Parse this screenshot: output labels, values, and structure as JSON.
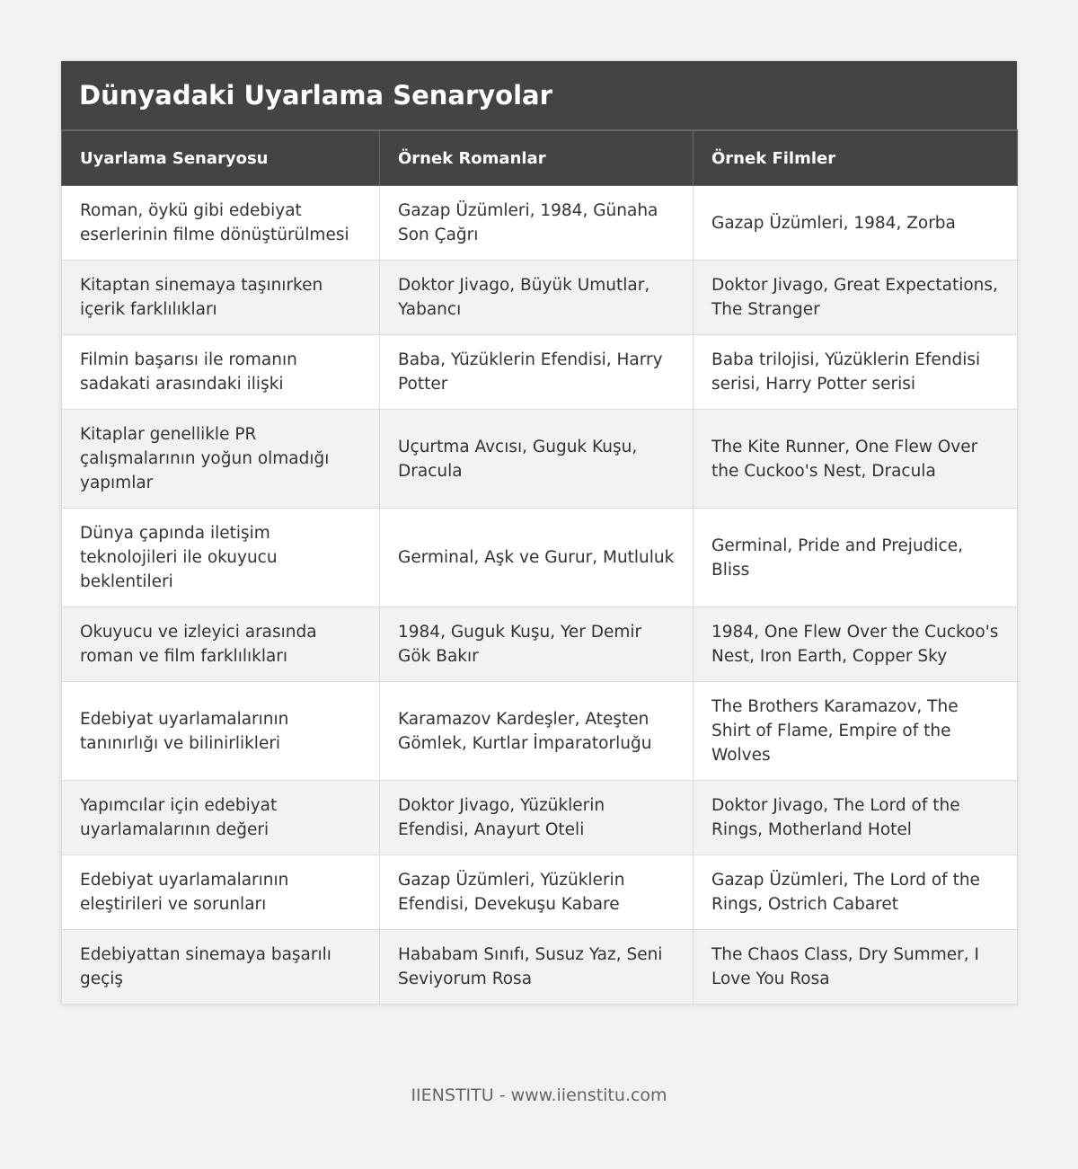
{
  "table": {
    "title": "Dünyadaki Uyarlama Senaryolar",
    "header": [
      "Uyarlama Senaryosu",
      "Örnek Romanlar",
      "Örnek Filmler"
    ],
    "rows": [
      [
        "Roman, öykü gibi edebiyat eserlerinin filme dönüştürülmesi",
        "Gazap Üzümleri, 1984, Günaha Son Çağrı",
        "Gazap Üzümleri, 1984, Zorba"
      ],
      [
        "Kitaptan sinemaya taşınırken içerik farklılıkları",
        "Doktor Jivago, Büyük Umutlar, Yabancı",
        "Doktor Jivago, Great Expectations, The Stranger"
      ],
      [
        "Filmin başarısı ile romanın sadakati arasındaki ilişki",
        "Baba, Yüzüklerin Efendisi, Harry Potter",
        "Baba trilojisi, Yüzüklerin Efendisi serisi, Harry Potter serisi"
      ],
      [
        "Kitaplar genellikle PR çalışmalarının yoğun olmadığı yapımlar",
        "Uçurtma Avcısı, Guguk Kuşu, Dracula",
        "The Kite Runner, One Flew Over the Cuckoo's Nest, Dracula"
      ],
      [
        "Dünya çapında iletişim teknolojileri ile okuyucu beklentileri",
        "Germinal, Aşk ve Gurur, Mutluluk",
        "Germinal, Pride and Prejudice, Bliss"
      ],
      [
        "Okuyucu ve izleyici arasında roman ve film farklılıkları",
        "1984, Guguk Kuşu, Yer Demir Gök Bakır",
        "1984, One Flew Over the Cuckoo's Nest, Iron Earth, Copper Sky"
      ],
      [
        "Edebiyat uyarlamalarının tanınırlığı ve bilinirlikleri",
        "Karamazov Kardeşler, Ateşten Gömlek, Kurtlar İmparatorluğu",
        "The Brothers Karamazov, The Shirt of Flame, Empire of the Wolves"
      ],
      [
        "Yapımcılar için edebiyat uyarlamalarının değeri",
        "Doktor Jivago, Yüzüklerin Efendisi, Anayurt Oteli",
        "Doktor Jivago, The Lord of the Rings, Motherland Hotel"
      ],
      [
        "Edebiyat uyarlamalarının eleştirileri ve sorunları",
        "Gazap Üzümleri, Yüzüklerin Efendisi, Devekuşu Kabare",
        "Gazap Üzümleri, The Lord of the Rings, Ostrich Cabaret"
      ],
      [
        "Edebiyattan sinemaya başarılı geçiş",
        "Hababam Sınıfı, Susuz Yaz, Seni Seviyorum Rosa",
        "The Chaos Class, Dry Summer, I Love You Rosa"
      ]
    ]
  },
  "footer": "IIENSTITU - www.iienstitu.com"
}
